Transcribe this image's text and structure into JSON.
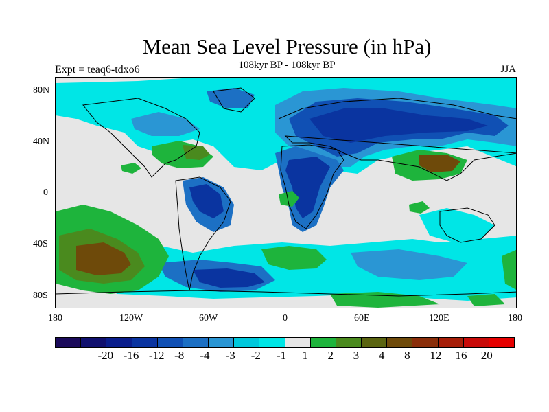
{
  "title": "Mean Sea Level Pressure (in hPa)",
  "subtitle": "108kyr BP - 108kyr BP",
  "left_label": "Expt = teaq6-tdxo6",
  "right_label": "JJA",
  "axes": {
    "lat_labels": [
      "80N",
      "40N",
      "0",
      "40S",
      "80S"
    ],
    "lon_labels": [
      "180",
      "120W",
      "60W",
      "0",
      "60E",
      "120E",
      "180"
    ]
  },
  "colorbar": {
    "colors": [
      "#1a0a5a",
      "#10106e",
      "#0a1e8c",
      "#0a34a0",
      "#1050b4",
      "#1c70c4",
      "#2a96d4",
      "#00c8dc",
      "#00e6e6",
      "#e6e6e6",
      "#1eb43c",
      "#4a8a1e",
      "#5a6410",
      "#6e4a0a",
      "#8a2e0a",
      "#a61e08",
      "#c80a08",
      "#e60000"
    ],
    "labels": [
      "-20",
      "-16",
      "-12",
      "-8",
      "-4",
      "-3",
      "-2",
      "-1",
      "1",
      "2",
      "3",
      "4",
      "8",
      "12",
      "16",
      "20"
    ]
  }
}
